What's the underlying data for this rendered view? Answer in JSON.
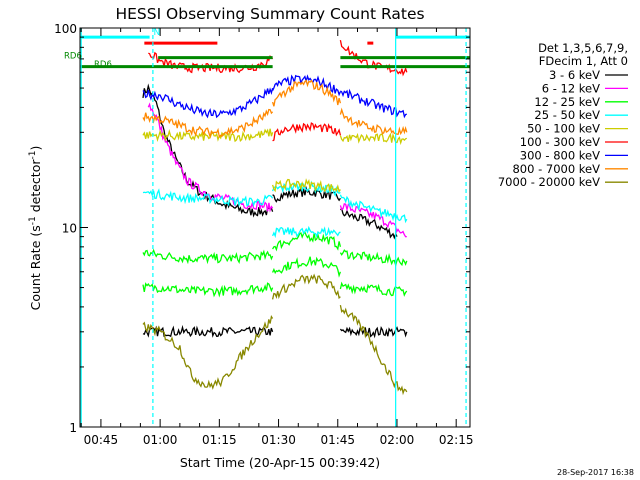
{
  "chart_data": {
    "type": "line",
    "title": "HESSI Observing Summary Count Rates",
    "xlabel": "Start Time (20-Apr-15 00:39:42)",
    "ylabel_main": "Count Rate (s",
    "ylabel_sup1": "-1",
    "ylabel_mid": " detector",
    "ylabel_sup2": "-1",
    "ylabel_end": ")",
    "y_scale": "log",
    "ylim": [
      1,
      100
    ],
    "xlim": [
      "00:39:42",
      "02:18:30"
    ],
    "y_tick_labels": [
      "1",
      "10",
      "100"
    ],
    "x_ticks": [
      "00:45",
      "01:00",
      "01:15",
      "01:30",
      "01:45",
      "02:00",
      "02:15"
    ],
    "legend_header": [
      "Det 1,3,5,6,7,9,",
      "FDecim 1, Att 0"
    ],
    "legend_position": "right",
    "footer_date": "28-Sep-2017 16:38",
    "flag_labels": {
      "n": "N",
      "rd6_top": "RD6",
      "rd6_bottom": "RD6"
    },
    "series": [
      {
        "name": "3 - 6 keV",
        "color": "#000000",
        "segments": [
          {
            "x": [
              "00:55:40",
              "00:57",
              "00:59",
              "01:01",
              "01:04",
              "01:07",
              "01:10",
              "01:13",
              "01:16",
              "01:19",
              "01:22",
              "01:25",
              "01:28:30"
            ],
            "y": [
              47,
              50,
              42,
              30,
              22,
              17,
              15,
              14,
              13,
              12.5,
              12,
              12,
              12
            ]
          },
          {
            "x": [
              "01:28:30",
              "01:31",
              "01:35",
              "01:39",
              "01:43",
              "01:45:40"
            ],
            "y": [
              14,
              14.5,
              15,
              15,
              14.5,
              14
            ]
          },
          {
            "x": [
              "01:45:40",
              "01:48",
              "01:51",
              "01:54",
              "01:56",
              "01:58",
              "02:00"
            ],
            "y": [
              12,
              11.5,
              11,
              10.5,
              10,
              9.5,
              9
            ]
          },
          {
            "x": [
              "00:55:40",
              "01:01",
              "01:10",
              "01:20",
              "01:28:30"
            ],
            "y": [
              3,
              3,
              3,
              3,
              3
            ]
          },
          {
            "x": [
              "01:45:40",
              "01:52",
              "02:00",
              "02:02:30"
            ],
            "y": [
              3,
              3,
              3,
              3
            ]
          }
        ]
      },
      {
        "name": "6 - 12 keV",
        "color": "#ff00ff",
        "segments": [
          {
            "x": [
              "00:57",
              "00:59",
              "01:01",
              "01:04",
              "01:07",
              "01:10",
              "01:13",
              "01:16",
              "01:19",
              "01:22",
              "01:25",
              "01:28:30"
            ],
            "y": [
              42,
              36,
              28,
              21,
              17,
              15.5,
              14.5,
              14,
              13.5,
              13,
              13,
              12.5
            ]
          },
          {
            "x": [
              "01:45:40",
              "01:48",
              "01:51",
              "01:54",
              "01:58",
              "02:02:30"
            ],
            "y": [
              13,
              12.5,
              12,
              11.5,
              10.5,
              9
            ]
          }
        ]
      },
      {
        "name": "12 - 25 keV",
        "color": "#00ff00",
        "segments": [
          {
            "x": [
              "00:55:40",
              "01:01",
              "01:07",
              "01:13",
              "01:19",
              "01:25",
              "01:28:30"
            ],
            "y": [
              7.5,
              7.2,
              7,
              7,
              7,
              7.2,
              7.2
            ]
          },
          {
            "x": [
              "01:28:30",
              "01:32",
              "01:36",
              "01:40",
              "01:44",
              "01:45:40"
            ],
            "y": [
              8,
              8.5,
              9,
              9,
              8.5,
              8
            ]
          },
          {
            "x": [
              "01:45:40",
              "01:50",
              "01:55",
              "02:00",
              "02:02:30"
            ],
            "y": [
              7.5,
              7.2,
              7,
              6.8,
              6.8
            ]
          },
          {
            "x": [
              "00:55:40",
              "01:01",
              "01:07",
              "01:13",
              "01:19",
              "01:25",
              "01:28:30"
            ],
            "y": [
              5,
              5,
              4.8,
              4.8,
              4.8,
              5,
              5
            ]
          },
          {
            "x": [
              "01:28:30",
              "01:33",
              "01:38",
              "01:43",
              "01:45:40"
            ],
            "y": [
              6,
              6.5,
              6.8,
              6.5,
              6
            ]
          },
          {
            "x": [
              "01:45:40",
              "01:52",
              "01:58",
              "02:02:30"
            ],
            "y": [
              5,
              5,
              4.8,
              4.8
            ]
          }
        ]
      },
      {
        "name": "25 - 50 keV",
        "color": "#00ffff",
        "segments": [
          {
            "x": [
              "00:55:40",
              "01:01",
              "01:07",
              "01:13",
              "01:19",
              "01:25",
              "01:28:30"
            ],
            "y": [
              15,
              14.5,
              14,
              14,
              13.5,
              13.5,
              14
            ]
          },
          {
            "x": [
              "01:28:30",
              "01:33",
              "01:38",
              "01:43",
              "01:45:40"
            ],
            "y": [
              15.5,
              16,
              16,
              15.5,
              15
            ]
          },
          {
            "x": [
              "01:45:40",
              "01:50",
              "01:55",
              "02:00",
              "02:02:30"
            ],
            "y": [
              14,
              13,
              12,
              11.5,
              11
            ]
          },
          {
            "x": [
              "01:28:30",
              "01:34",
              "01:40",
              "01:45:40"
            ],
            "y": [
              9.5,
              9.5,
              9.5,
              9.5
            ]
          }
        ]
      },
      {
        "name": "50 - 100 keV",
        "color": "#cccc00",
        "segments": [
          {
            "x": [
              "00:55:40",
              "01:01",
              "01:07",
              "01:13",
              "01:19",
              "01:25",
              "01:28:30"
            ],
            "y": [
              29,
              29,
              28.5,
              28.5,
              28.5,
              29,
              30
            ]
          },
          {
            "x": [
              "01:45:40",
              "01:50",
              "01:55",
              "02:00",
              "02:02:30"
            ],
            "y": [
              28,
              28,
              28,
              28,
              28
            ]
          },
          {
            "x": [
              "01:28:30",
              "01:32",
              "01:37",
              "01:42",
              "01:45:40"
            ],
            "y": [
              16,
              16.5,
              16.5,
              16,
              15.5
            ]
          }
        ]
      },
      {
        "name": "100 - 300 keV",
        "color": "#ff0000",
        "segments": [
          {
            "x": [
              "00:57",
              "01:00",
              "01:04",
              "01:08",
              "01:12",
              "01:16",
              "01:20",
              "01:24",
              "01:28:30"
            ],
            "y": [
              76,
              68,
              64,
              63,
              63,
              63,
              63,
              64,
              70
            ]
          },
          {
            "x": [
              "01:45:40",
              "01:48",
              "01:52",
              "01:56",
              "02:00",
              "02:02:30"
            ],
            "y": [
              85,
              76,
              67,
              63,
              62,
              60
            ]
          },
          {
            "x": [
              "01:28:30",
              "01:31",
              "01:35",
              "01:39",
              "01:43",
              "01:45:40"
            ],
            "y": [
              28,
              31,
              32,
              32,
              31,
              29
            ]
          }
        ]
      },
      {
        "name": "300 - 800 keV",
        "color": "#0000ff",
        "segments": [
          {
            "x": [
              "00:55:40",
              "01:00",
              "01:04",
              "01:08",
              "01:12",
              "01:16",
              "01:20",
              "01:24",
              "01:28:30"
            ],
            "y": [
              47,
              46,
              42,
              39,
              37,
              37,
              39,
              43,
              50
            ]
          },
          {
            "x": [
              "01:28:30",
              "01:31",
              "01:34",
              "01:37",
              "01:40",
              "01:43",
              "01:45:40"
            ],
            "y": [
              50,
              53,
              55,
              55,
              54,
              51,
              48
            ]
          },
          {
            "x": [
              "01:45:40",
              "01:48",
              "01:52",
              "01:56",
              "02:00",
              "02:02:30"
            ],
            "y": [
              48,
              46,
              43,
              40,
              38,
              37
            ]
          }
        ]
      },
      {
        "name": "800 - 7000 keV",
        "color": "#ff8800",
        "segments": [
          {
            "x": [
              "00:55:40",
              "01:00",
              "01:04",
              "01:08",
              "01:12",
              "01:16",
              "01:20",
              "01:24",
              "01:28:30"
            ],
            "y": [
              36,
              35,
              33,
              31,
              30,
              30,
              31,
              34,
              38
            ]
          },
          {
            "x": [
              "01:28:30",
              "01:31",
              "01:34",
              "01:37",
              "01:40",
              "01:43",
              "01:45:40"
            ],
            "y": [
              42,
              47,
              51,
              53,
              51,
              47,
              42
            ]
          },
          {
            "x": [
              "01:45:40",
              "01:48",
              "01:52",
              "01:56",
              "02:00",
              "02:02:30"
            ],
            "y": [
              38,
              35,
              32,
              31,
              30,
              30
            ]
          }
        ]
      },
      {
        "name": "7000 - 20000 keV",
        "color": "#888800",
        "segments": [
          {
            "x": [
              "00:55:40",
              "01:00",
              "01:05",
              "01:08",
              "01:12",
              "01:16",
              "01:20",
              "01:24",
              "01:28:30"
            ],
            "y": [
              3.2,
              3,
              2.5,
              1.8,
              1.6,
              1.7,
              2.2,
              2.8,
              3.5
            ]
          },
          {
            "x": [
              "01:28:30",
              "01:32",
              "01:36",
              "01:40",
              "01:44",
              "01:45:40"
            ],
            "y": [
              4.5,
              5,
              5.5,
              5.5,
              5,
              4.5
            ]
          },
          {
            "x": [
              "01:45:40",
              "01:49",
              "01:53",
              "01:57",
              "02:00",
              "02:02:30"
            ],
            "y": [
              4,
              3.5,
              2.8,
              2,
              1.6,
              1.5
            ]
          }
        ]
      }
    ],
    "flags": [
      {
        "label": "N",
        "color": "#00ffff",
        "y": 90,
        "segments": [
          [
            "00:39:42",
            "00:57:20"
          ],
          [
            "01:59:40",
            "02:18:30"
          ]
        ]
      },
      {
        "label": "RD6",
        "color": "#008800",
        "y": 64,
        "segments": [
          [
            "00:39:42",
            "01:28:30"
          ],
          [
            "01:45:40",
            "02:18:30"
          ]
        ]
      },
      {
        "label": "RD6",
        "color": "#008800",
        "y": 71,
        "segments": [
          [
            "00:59:30",
            "01:28:30"
          ],
          [
            "01:45:40",
            "02:18:30"
          ]
        ]
      },
      {
        "label": "",
        "color": "#ff0000",
        "y": 84,
        "segments": [
          [
            "00:56",
            "01:14:30"
          ]
        ]
      },
      {
        "label": "",
        "color": "#ff0000",
        "y": 84,
        "segments": [
          [
            "01:52:30",
            "01:54"
          ]
        ]
      }
    ],
    "vlines": [
      {
        "x": "00:40",
        "color": "#00ffff",
        "style": "solid"
      },
      {
        "x": "00:58:10",
        "color": "#00ffff",
        "style": "dashed"
      },
      {
        "x": "01:59:40",
        "color": "#00ffff",
        "style": "solid"
      },
      {
        "x": "02:17:30",
        "color": "#00ffff",
        "style": "dashed"
      }
    ]
  }
}
